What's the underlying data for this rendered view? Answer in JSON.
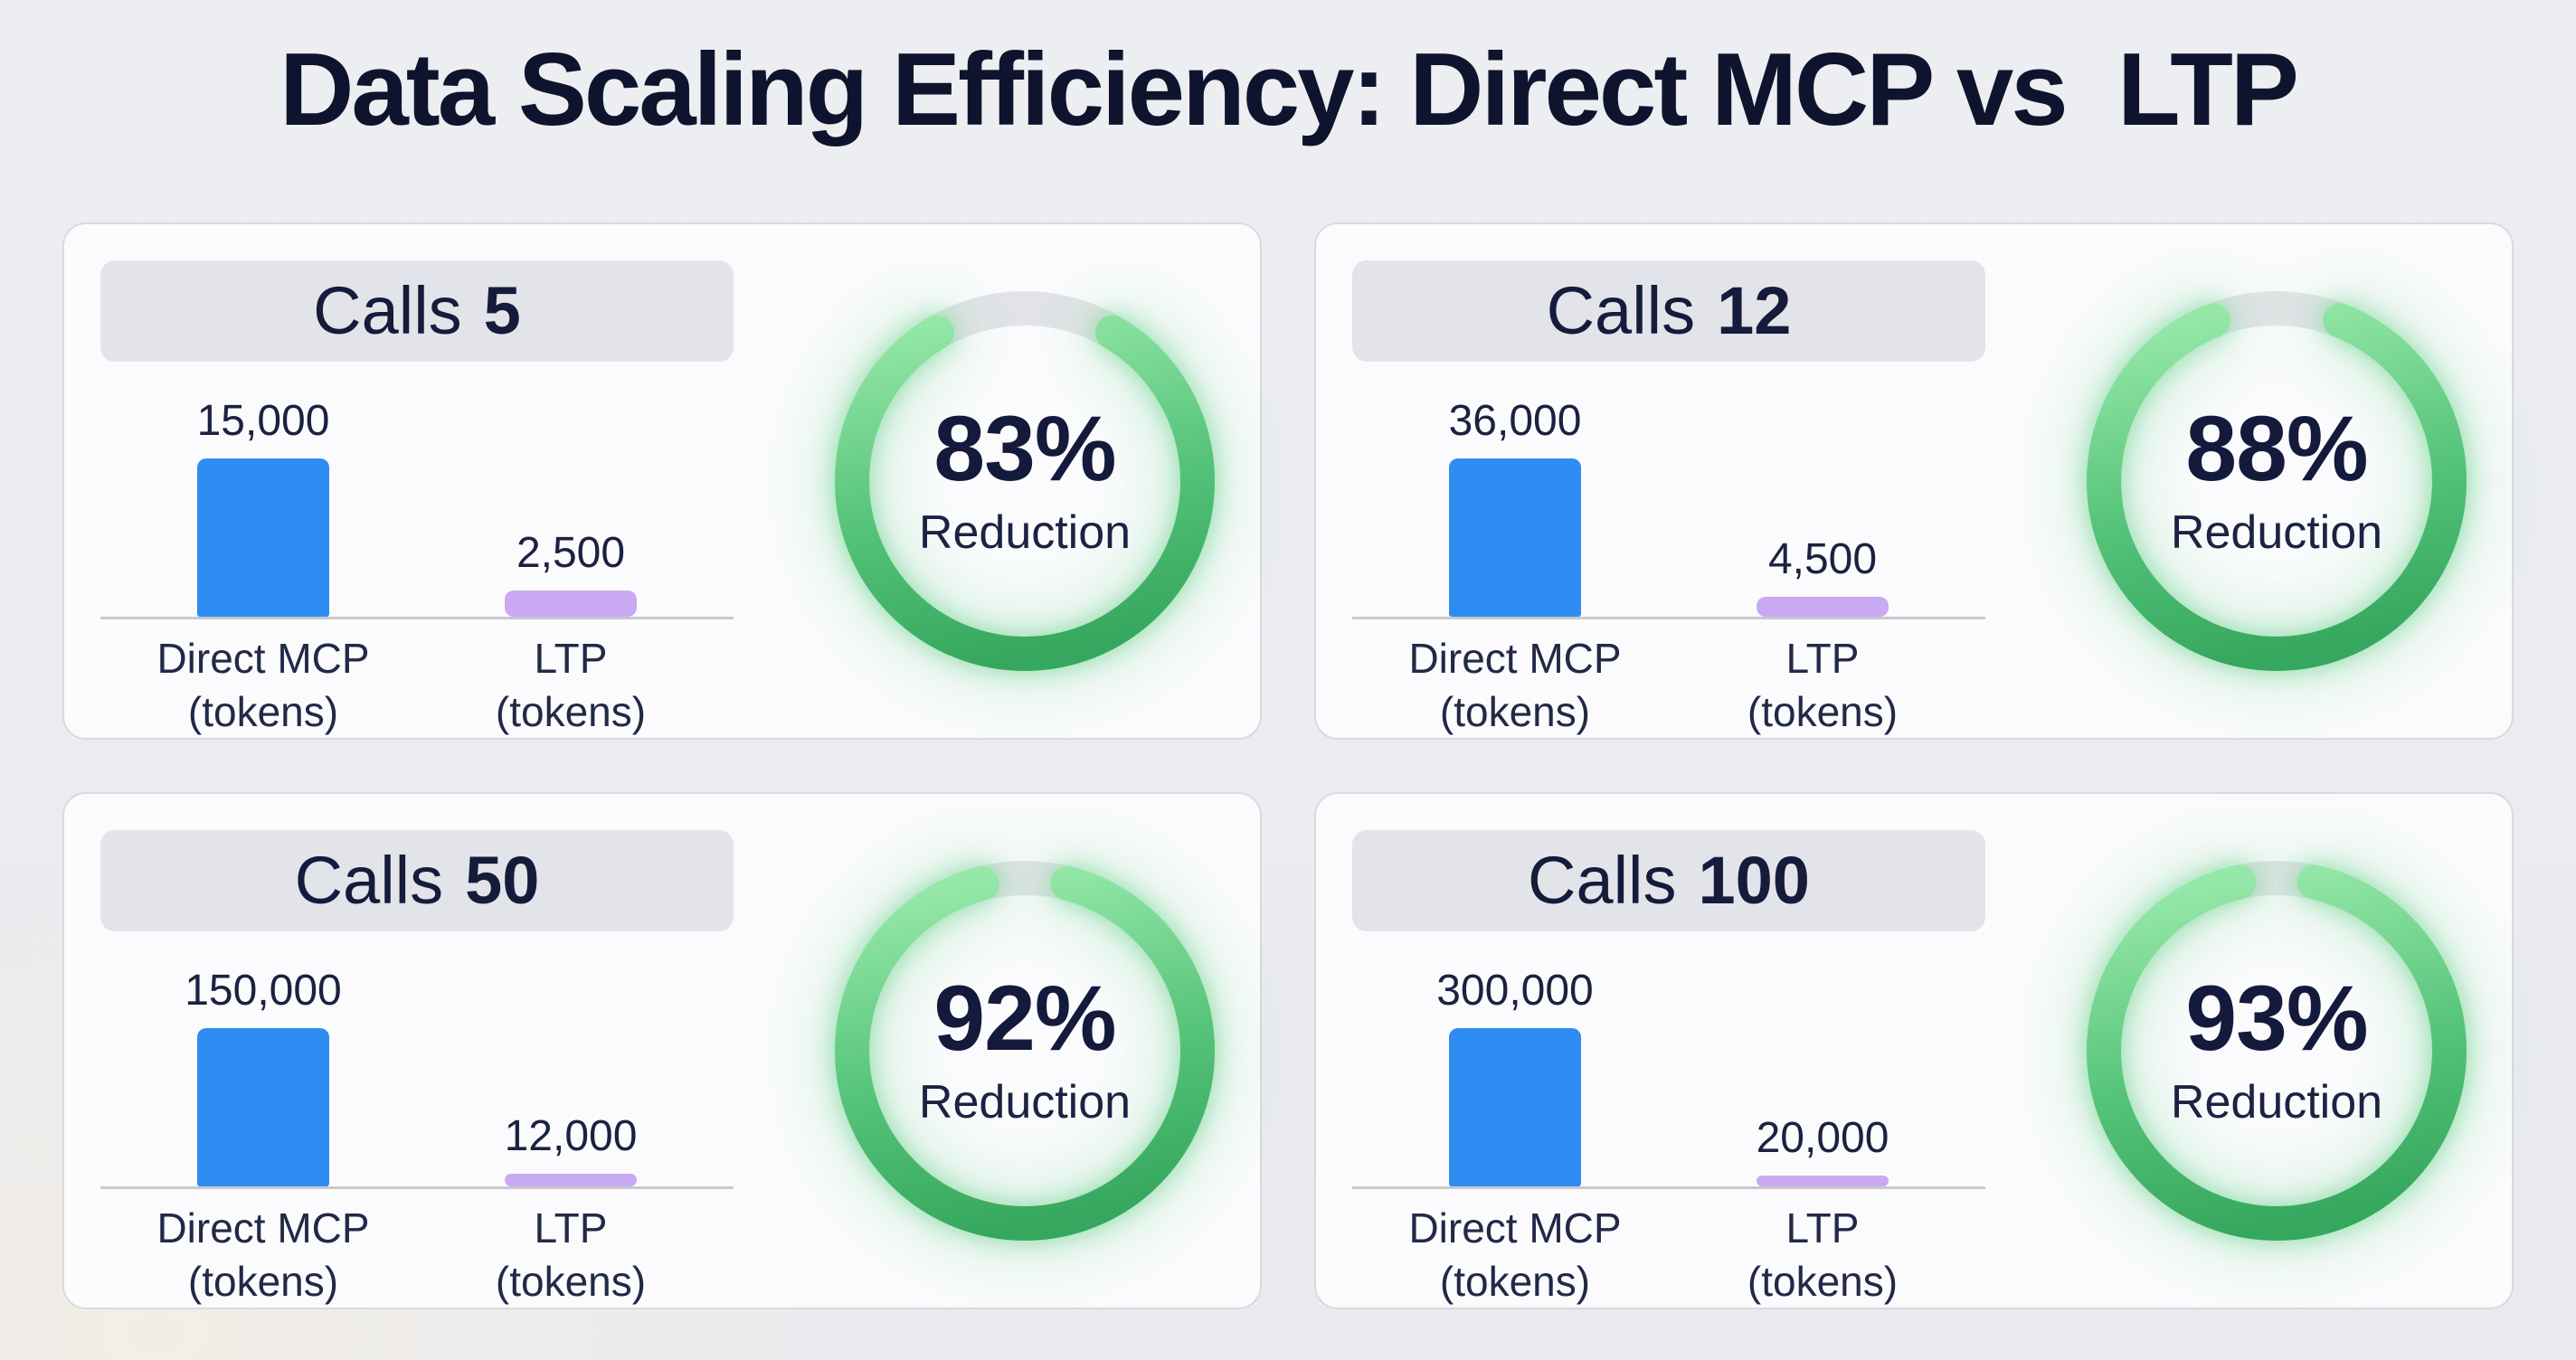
{
  "title": "Data Scaling Efficiency: Direct MCP vs  LTP",
  "colors": {
    "bar_blue": "#2e8cf2",
    "bar_purple": "#c9a9f1",
    "ring_green_light": "#96e8a9",
    "ring_green_dark": "#36a75e",
    "ring_track": "#e2e3e7",
    "text_navy": "#131a3c"
  },
  "chart_data": [
    {
      "type": "bar",
      "header": {
        "word": "Calls",
        "value": "5"
      },
      "bars": [
        {
          "name": "Direct MCP",
          "unit": "(tokens)",
          "value": 15000,
          "label": "15,000"
        },
        {
          "name": "LTP",
          "unit": "(tokens)",
          "value": 2500,
          "label": "2,500"
        }
      ],
      "ring": {
        "pct": 83,
        "label": "83%",
        "caption": "Reduction"
      }
    },
    {
      "type": "bar",
      "header": {
        "word": "Calls",
        "value": "12"
      },
      "bars": [
        {
          "name": "Direct MCP",
          "unit": "(tokens)",
          "value": 36000,
          "label": "36,000"
        },
        {
          "name": "LTP",
          "unit": "(tokens)",
          "value": 4500,
          "label": "4,500"
        }
      ],
      "ring": {
        "pct": 88,
        "label": "88%",
        "caption": "Reduction"
      }
    },
    {
      "type": "bar",
      "header": {
        "word": "Calls",
        "value": "50"
      },
      "bars": [
        {
          "name": "Direct MCP",
          "unit": "(tokens)",
          "value": 150000,
          "label": "150,000"
        },
        {
          "name": "LTP",
          "unit": "(tokens)",
          "value": 12000,
          "label": "12,000"
        }
      ],
      "ring": {
        "pct": 92,
        "label": "92%",
        "caption": "Reduction"
      }
    },
    {
      "type": "bar",
      "header": {
        "word": "Calls",
        "value": "100"
      },
      "bars": [
        {
          "name": "Direct MCP",
          "unit": "(tokens)",
          "value": 300000,
          "label": "300,000"
        },
        {
          "name": "LTP",
          "unit": "(tokens)",
          "value": 20000,
          "label": "20,000"
        }
      ],
      "ring": {
        "pct": 93,
        "label": "93%",
        "caption": "Reduction"
      }
    }
  ]
}
